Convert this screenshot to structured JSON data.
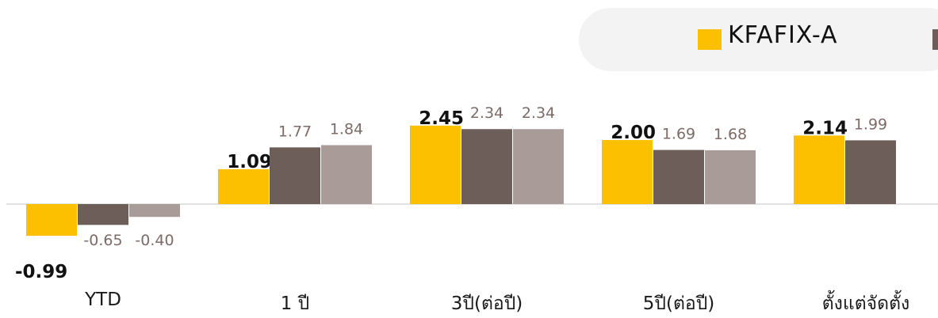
{
  "colors": {
    "fund": "#fcc000",
    "benchmark1": "#6e5e5a",
    "benchmark2": "#a89b98",
    "baseline": "#e2e2e2",
    "fund_label": "#111111",
    "bench_label": "#7d6b67",
    "legend_bg": "#f3f3f3"
  },
  "legend": {
    "items": [
      {
        "name": "KFAFIX-A",
        "color": "#fcc000"
      },
      {
        "name": "",
        "color": "#6e5e5a"
      }
    ]
  },
  "chart_data": {
    "type": "bar",
    "categories": [
      "YTD",
      "1 ปี",
      "3ปี(ต่อปี)",
      "5ปี(ต่อปี)",
      "ตั้งแต่จัดตั้ง"
    ],
    "series": [
      {
        "name": "KFAFIX-A",
        "values": [
          -0.99,
          1.09,
          2.45,
          2.0,
          2.14
        ],
        "labels": [
          "-0.99",
          "1.09",
          "2.45",
          "2.00",
          "2.14"
        ]
      },
      {
        "values": [
          -0.65,
          1.77,
          2.34,
          1.69,
          1.99
        ],
        "labels": [
          "-0.65",
          "1.77",
          "2.34",
          "1.69",
          "1.99"
        ]
      },
      {
        "values": [
          -0.4,
          1.84,
          2.34,
          1.68,
          null
        ],
        "labels": [
          "-0.40",
          "1.84",
          "2.34",
          "1.68",
          ""
        ]
      }
    ],
    "grid": false,
    "legend_position": "top-right"
  }
}
